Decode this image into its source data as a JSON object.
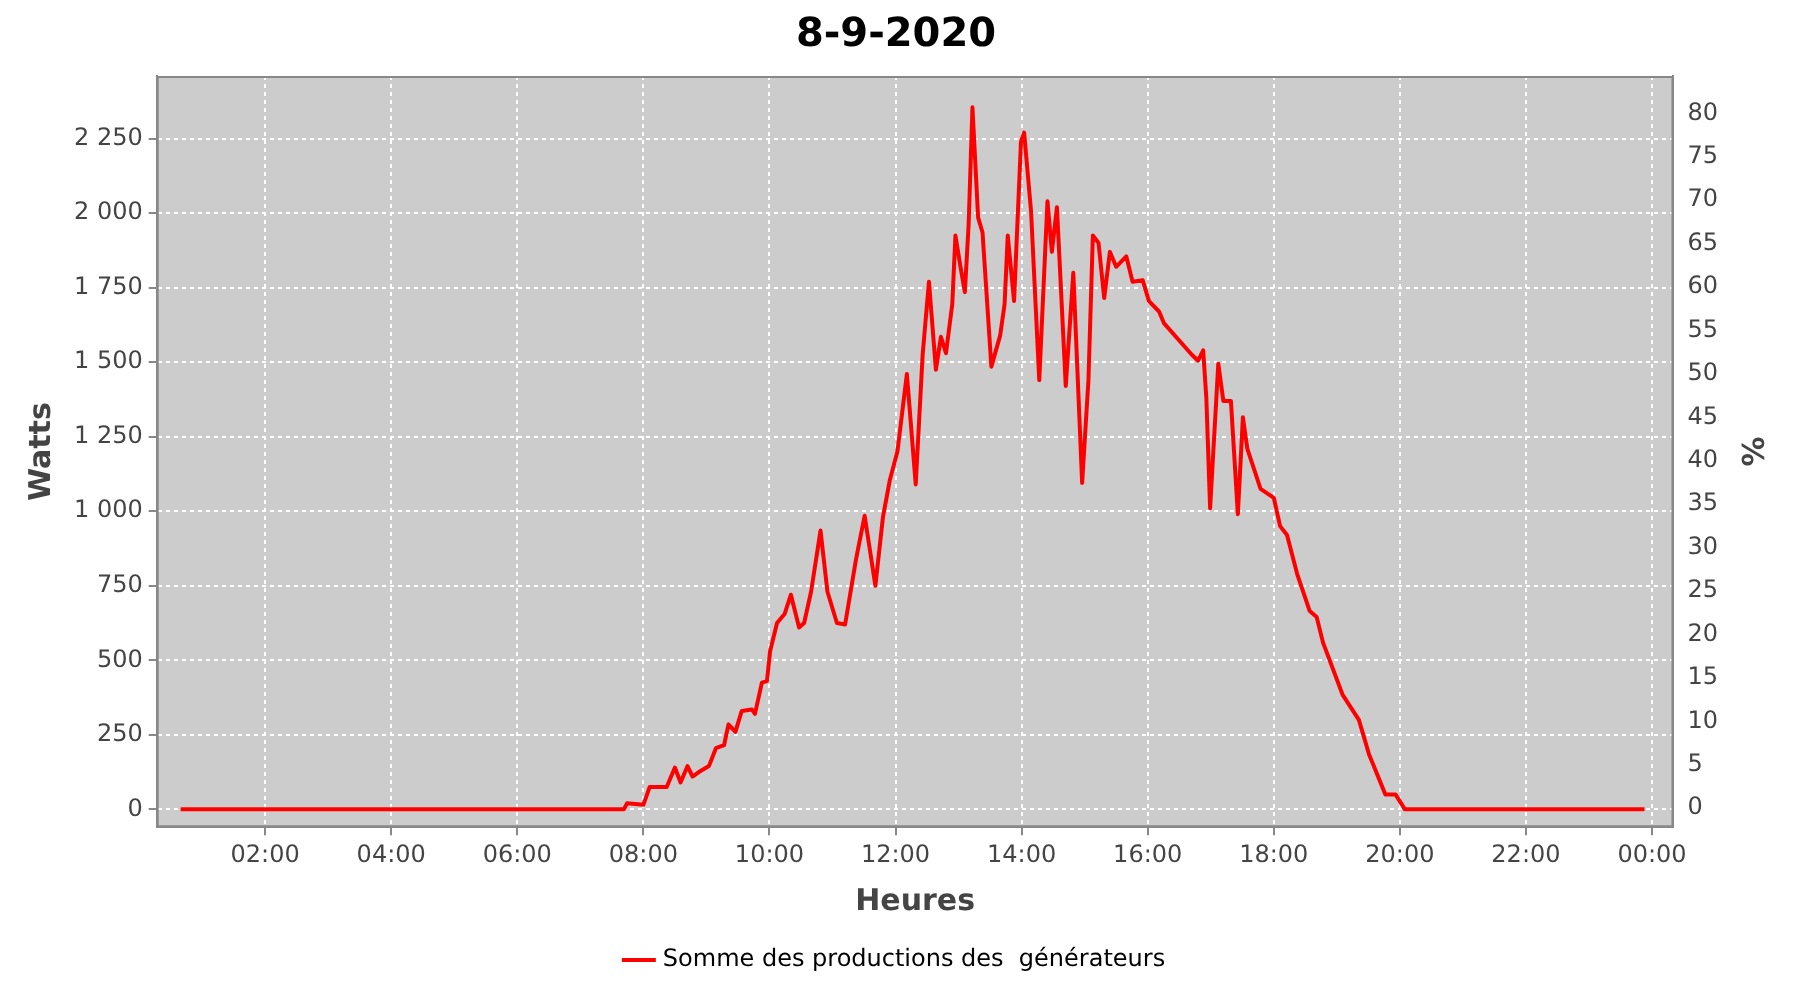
{
  "chart_data": {
    "type": "line",
    "title": "8-9-2020",
    "xlabel": "Heures",
    "ylabel": "Watts",
    "y2label": "%",
    "xlim": [
      0.28,
      24.34
    ],
    "xticks": [
      {
        "value": 2,
        "label": "02:00"
      },
      {
        "value": 4,
        "label": "04:00"
      },
      {
        "value": 6,
        "label": "06:00"
      },
      {
        "value": 8,
        "label": "08:00"
      },
      {
        "value": 10,
        "label": "10:00"
      },
      {
        "value": 12,
        "label": "12:00"
      },
      {
        "value": 14,
        "label": "14:00"
      },
      {
        "value": 16,
        "label": "16:00"
      },
      {
        "value": 18,
        "label": "18:00"
      },
      {
        "value": 20,
        "label": "20:00"
      },
      {
        "value": 22,
        "label": "22:00"
      },
      {
        "value": 24,
        "label": "00:00"
      }
    ],
    "ylim": [
      -60,
      2460
    ],
    "yticks": [
      0,
      250,
      500,
      750,
      {
        "value": 1000,
        "label": "1 000"
      },
      {
        "value": 1250,
        "label": "1 250"
      },
      {
        "value": 1500,
        "label": "1 500"
      },
      {
        "value": 1750,
        "label": "1 750"
      },
      {
        "value": 2000,
        "label": "2 000"
      },
      {
        "value": 2250,
        "label": "2 250"
      }
    ],
    "y2lim": [
      -2.2,
      84.3
    ],
    "y2ticks": [
      0,
      5,
      10,
      15,
      20,
      25,
      30,
      35,
      40,
      45,
      50,
      55,
      60,
      65,
      70,
      75,
      80
    ],
    "grid": true,
    "legend": "bottom",
    "marker": "none",
    "line_style": "solid",
    "series": [
      {
        "name": "Somme des productions des  générateurs",
        "color": "#ff0000",
        "x": [
          0.66,
          7.69,
          7.74,
          8.0,
          8.1,
          8.37,
          8.5,
          8.59,
          8.7,
          8.78,
          8.88,
          9.04,
          9.15,
          9.28,
          9.35,
          9.46,
          9.56,
          9.72,
          9.77,
          9.88,
          9.96,
          10.01,
          10.12,
          10.24,
          10.34,
          10.47,
          10.55,
          10.66,
          10.81,
          10.92,
          11.07,
          11.2,
          11.37,
          11.51,
          11.68,
          11.8,
          11.91,
          12.03,
          12.18,
          12.32,
          12.43,
          12.53,
          12.64,
          12.72,
          12.8,
          12.9,
          12.95,
          13.03,
          13.1,
          13.16,
          13.22,
          13.31,
          13.38,
          13.52,
          13.66,
          13.73,
          13.78,
          13.88,
          13.99,
          14.04,
          14.15,
          14.28,
          14.41,
          14.48,
          14.56,
          14.7,
          14.82,
          14.96,
          15.06,
          15.13,
          15.22,
          15.31,
          15.4,
          15.5,
          15.66,
          15.76,
          15.92,
          16.02,
          16.18,
          16.26,
          16.7,
          16.8,
          16.88,
          16.93,
          16.99,
          17.12,
          17.2,
          17.32,
          17.43,
          17.51,
          17.58,
          17.79,
          18.0,
          18.1,
          18.21,
          18.37,
          18.57,
          18.68,
          18.78,
          19.09,
          19.35,
          19.51,
          19.77,
          19.93,
          20.08,
          23.88
        ],
        "values": [
          0,
          0,
          20,
          15,
          75,
          75,
          140,
          90,
          145,
          110,
          125,
          145,
          205,
          215,
          285,
          260,
          330,
          335,
          320,
          425,
          430,
          530,
          625,
          655,
          720,
          610,
          625,
          730,
          935,
          730,
          625,
          620,
          835,
          985,
          750,
          980,
          1105,
          1200,
          1460,
          1090,
          1525,
          1770,
          1475,
          1585,
          1530,
          1695,
          1925,
          1820,
          1735,
          1965,
          2355,
          1985,
          1935,
          1485,
          1590,
          1695,
          1925,
          1705,
          2240,
          2270,
          2005,
          1440,
          2040,
          1870,
          2020,
          1420,
          1800,
          1095,
          1440,
          1925,
          1900,
          1715,
          1870,
          1820,
          1855,
          1770,
          1775,
          1705,
          1670,
          1630,
          1525,
          1505,
          1540,
          1380,
          1010,
          1495,
          1370,
          1370,
          990,
          1315,
          1210,
          1075,
          1045,
          950,
          920,
          790,
          665,
          645,
          560,
          385,
          300,
          185,
          50,
          50,
          0,
          0
        ]
      }
    ]
  }
}
